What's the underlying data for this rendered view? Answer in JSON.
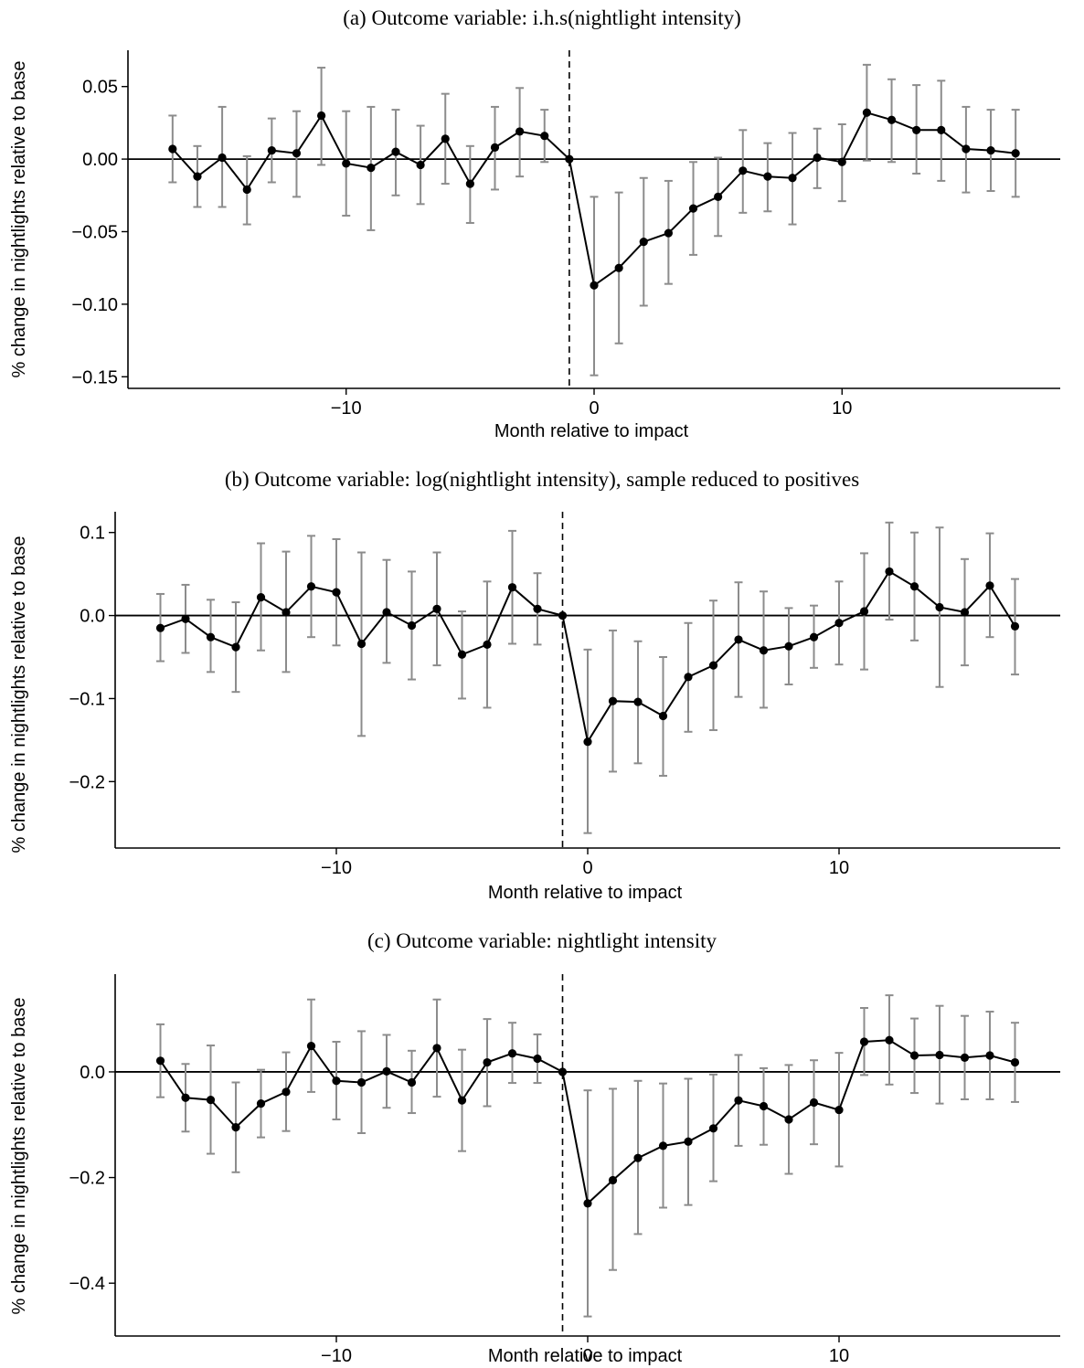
{
  "chart_data": [
    {
      "type": "line",
      "title": "(a) Outcome variable: i.h.s(nightlight intensity)",
      "xlabel": "Month relative to impact",
      "ylabel": "% change in nightlights relative to base",
      "xlim": [
        -18.8,
        18.8
      ],
      "ylim": [
        -0.158,
        0.075
      ],
      "xticks": [
        -10,
        0,
        10
      ],
      "xtick_labels": [
        "−10",
        "0",
        "10"
      ],
      "yticks": [
        0.05,
        0.0,
        -0.05,
        -0.1,
        -0.15
      ],
      "ytick_labels": [
        "0.05",
        "0.00",
        "−0.05",
        "−0.10",
        "−0.15"
      ],
      "reference_vline_x": -1,
      "reference_hline_y": 0,
      "grid": false,
      "x": [
        -17,
        -16,
        -15,
        -14,
        -13,
        -12,
        -11,
        -10,
        -9,
        -8,
        -7,
        -6,
        -5,
        -4,
        -3,
        -2,
        -1,
        0,
        1,
        2,
        3,
        4,
        5,
        6,
        7,
        8,
        9,
        10,
        11,
        12,
        13,
        14,
        15,
        16,
        17
      ],
      "y": [
        0.007,
        -0.012,
        0.001,
        -0.021,
        0.006,
        0.004,
        0.03,
        -0.003,
        -0.006,
        0.005,
        -0.004,
        0.014,
        -0.017,
        0.008,
        0.019,
        0.016,
        0.0,
        -0.087,
        -0.075,
        -0.057,
        -0.051,
        -0.034,
        -0.026,
        -0.008,
        -0.012,
        -0.013,
        0.001,
        -0.002,
        0.032,
        0.027,
        0.02,
        0.02,
        0.007,
        0.006,
        0.004
      ],
      "lower": [
        -0.016,
        -0.033,
        -0.033,
        -0.045,
        -0.016,
        -0.026,
        -0.004,
        -0.039,
        -0.049,
        -0.025,
        -0.031,
        -0.017,
        -0.044,
        -0.021,
        -0.012,
        -0.002,
        0.0,
        -0.149,
        -0.127,
        -0.101,
        -0.086,
        -0.066,
        -0.053,
        -0.037,
        -0.036,
        -0.045,
        -0.02,
        -0.029,
        -0.001,
        -0.002,
        -0.01,
        -0.015,
        -0.023,
        -0.022,
        -0.026
      ],
      "upper": [
        0.03,
        0.009,
        0.036,
        0.002,
        0.028,
        0.033,
        0.063,
        0.033,
        0.036,
        0.034,
        0.023,
        0.045,
        0.009,
        0.036,
        0.049,
        0.034,
        0.0,
        -0.026,
        -0.023,
        -0.013,
        -0.015,
        -0.002,
        0.001,
        0.02,
        0.011,
        0.018,
        0.021,
        0.024,
        0.065,
        0.055,
        0.051,
        0.054,
        0.036,
        0.034,
        0.034
      ]
    },
    {
      "type": "line",
      "title": "(b) Outcome variable: log(nightlight intensity), sample reduced to positives",
      "xlabel": "Month relative to impact",
      "ylabel": "% change in nightlights relative to base",
      "xlim": [
        -18.8,
        18.8
      ],
      "ylim": [
        -0.28,
        0.125
      ],
      "xticks": [
        -10,
        0,
        10
      ],
      "xtick_labels": [
        "−10",
        "0",
        "10"
      ],
      "yticks": [
        0.1,
        0.0,
        -0.1,
        -0.2
      ],
      "ytick_labels": [
        "0.1",
        "0.0",
        "−0.1",
        "−0.2"
      ],
      "reference_vline_x": -1,
      "reference_hline_y": 0,
      "grid": false,
      "x": [
        -17,
        -16,
        -15,
        -14,
        -13,
        -12,
        -11,
        -10,
        -9,
        -8,
        -7,
        -6,
        -5,
        -4,
        -3,
        -2,
        -1,
        0,
        1,
        2,
        3,
        4,
        5,
        6,
        7,
        8,
        9,
        10,
        11,
        12,
        13,
        14,
        15,
        16,
        17
      ],
      "y": [
        -0.015,
        -0.004,
        -0.026,
        -0.038,
        0.022,
        0.004,
        0.035,
        0.028,
        -0.034,
        0.004,
        -0.012,
        0.008,
        -0.047,
        -0.035,
        0.034,
        0.008,
        0.0,
        -0.152,
        -0.103,
        -0.104,
        -0.121,
        -0.074,
        -0.06,
        -0.029,
        -0.042,
        -0.037,
        -0.026,
        -0.009,
        0.005,
        0.053,
        0.035,
        0.01,
        0.004,
        0.036,
        -0.013
      ],
      "lower": [
        -0.055,
        -0.045,
        -0.068,
        -0.092,
        -0.042,
        -0.068,
        -0.026,
        -0.036,
        -0.145,
        -0.057,
        -0.077,
        -0.06,
        -0.1,
        -0.111,
        -0.034,
        -0.035,
        0.0,
        -0.262,
        -0.188,
        -0.178,
        -0.193,
        -0.14,
        -0.138,
        -0.098,
        -0.111,
        -0.083,
        -0.063,
        -0.059,
        -0.065,
        -0.005,
        -0.03,
        -0.086,
        -0.06,
        -0.026,
        -0.071
      ],
      "upper": [
        0.026,
        0.037,
        0.019,
        0.016,
        0.087,
        0.077,
        0.096,
        0.092,
        0.076,
        0.067,
        0.053,
        0.076,
        0.005,
        0.041,
        0.102,
        0.051,
        0.0,
        -0.041,
        -0.018,
        -0.031,
        -0.05,
        -0.009,
        0.018,
        0.04,
        0.029,
        0.009,
        0.012,
        0.041,
        0.075,
        0.112,
        0.1,
        0.106,
        0.068,
        0.099,
        0.044
      ]
    },
    {
      "type": "line",
      "title": "(c) Outcome variable: nightlight intensity",
      "xlabel": "Month relative to impact",
      "ylabel": "% change in nightlights relative to base",
      "xlim": [
        -18.8,
        18.8
      ],
      "ylim": [
        -0.5,
        0.185
      ],
      "xticks": [
        -10,
        0,
        10
      ],
      "xtick_labels": [
        "−10",
        "0",
        "10"
      ],
      "yticks": [
        0.0,
        -0.2,
        -0.4
      ],
      "ytick_labels": [
        "0.0",
        "−0.2",
        "−0.4"
      ],
      "reference_vline_x": -1,
      "reference_hline_y": 0,
      "grid": false,
      "x": [
        -17,
        -16,
        -15,
        -14,
        -13,
        -12,
        -11,
        -10,
        -9,
        -8,
        -7,
        -6,
        -5,
        -4,
        -3,
        -2,
        -1,
        0,
        1,
        2,
        3,
        4,
        5,
        6,
        7,
        8,
        9,
        10,
        11,
        12,
        13,
        14,
        15,
        16,
        17
      ],
      "y": [
        0.021,
        -0.049,
        -0.053,
        -0.105,
        -0.06,
        -0.038,
        0.049,
        -0.017,
        -0.02,
        0.001,
        -0.02,
        0.045,
        -0.054,
        0.018,
        0.035,
        0.025,
        0.0,
        -0.249,
        -0.205,
        -0.163,
        -0.14,
        -0.132,
        -0.107,
        -0.054,
        -0.065,
        -0.09,
        -0.058,
        -0.072,
        0.057,
        0.06,
        0.031,
        0.032,
        0.027,
        0.031,
        0.018
      ],
      "lower": [
        -0.048,
        -0.113,
        -0.155,
        -0.19,
        -0.124,
        -0.112,
        -0.038,
        -0.09,
        -0.116,
        -0.068,
        -0.078,
        -0.047,
        -0.15,
        -0.065,
        -0.021,
        -0.021,
        0.0,
        -0.463,
        -0.375,
        -0.307,
        -0.257,
        -0.252,
        -0.207,
        -0.14,
        -0.138,
        -0.193,
        -0.137,
        -0.179,
        -0.006,
        -0.024,
        -0.04,
        -0.06,
        -0.052,
        -0.052,
        -0.057
      ],
      "upper": [
        0.09,
        0.015,
        0.05,
        -0.02,
        0.004,
        0.037,
        0.137,
        0.057,
        0.077,
        0.07,
        0.04,
        0.137,
        0.042,
        0.1,
        0.093,
        0.071,
        0.0,
        -0.035,
        -0.032,
        -0.017,
        -0.022,
        -0.013,
        -0.005,
        0.032,
        0.007,
        0.013,
        0.022,
        0.036,
        0.121,
        0.145,
        0.101,
        0.125,
        0.106,
        0.114,
        0.093
      ]
    }
  ]
}
